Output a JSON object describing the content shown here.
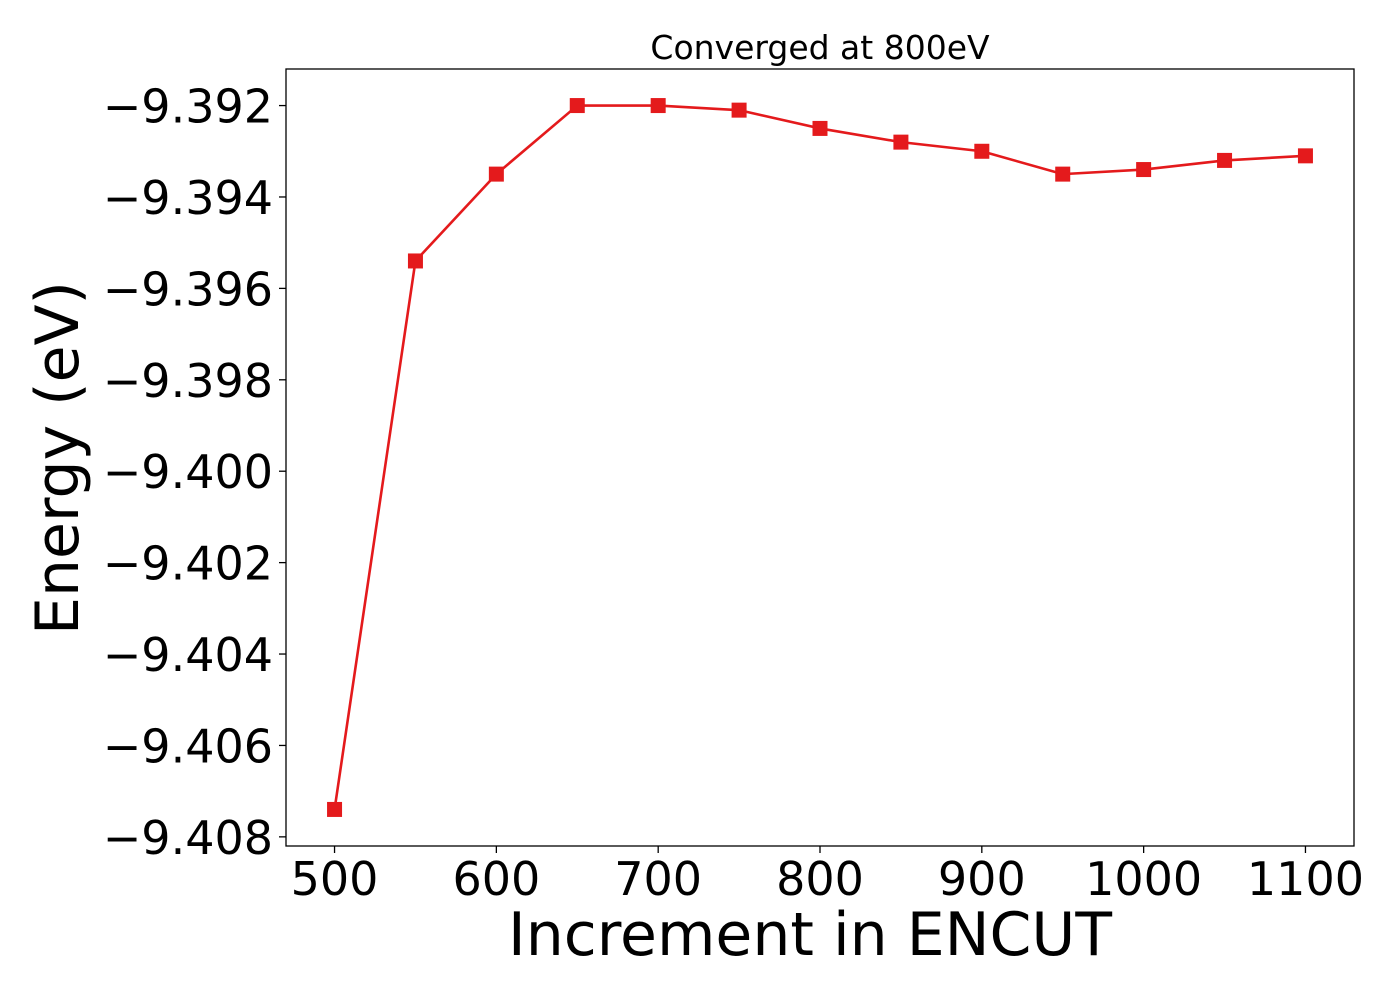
{
  "chart_data": {
    "type": "line",
    "title": "Converged at 800eV",
    "xlabel": "Increment in ENCUT",
    "ylabel": "Energy (eV)",
    "x": [
      500,
      550,
      600,
      650,
      700,
      750,
      800,
      850,
      900,
      950,
      1000,
      1050,
      1100
    ],
    "series": [
      {
        "values": [
          -9.4074,
          -9.3954,
          -9.3935,
          -9.392,
          -9.392,
          -9.3921,
          -9.3925,
          -9.3928,
          -9.393,
          -9.3935,
          -9.3934,
          -9.3932,
          -9.3931
        ],
        "color": "#e41a1c",
        "marker": "square"
      }
    ],
    "xlim": [
      470,
      1130
    ],
    "ylim": [
      -9.4082,
      -9.3912
    ],
    "xticks": [
      500,
      600,
      700,
      800,
      900,
      1000,
      1100
    ],
    "xtick_labels": [
      "500",
      "600",
      "700",
      "800",
      "900",
      "1000",
      "1100"
    ],
    "yticks": [
      -9.392,
      -9.394,
      -9.396,
      -9.398,
      -9.4,
      -9.402,
      -9.404,
      -9.406,
      -9.408
    ],
    "ytick_labels": [
      "−9.392",
      "−9.394",
      "−9.396",
      "−9.398",
      "−9.400",
      "−9.402",
      "−9.404",
      "−9.406",
      "−9.408"
    ],
    "grid": false,
    "legend": "none"
  }
}
